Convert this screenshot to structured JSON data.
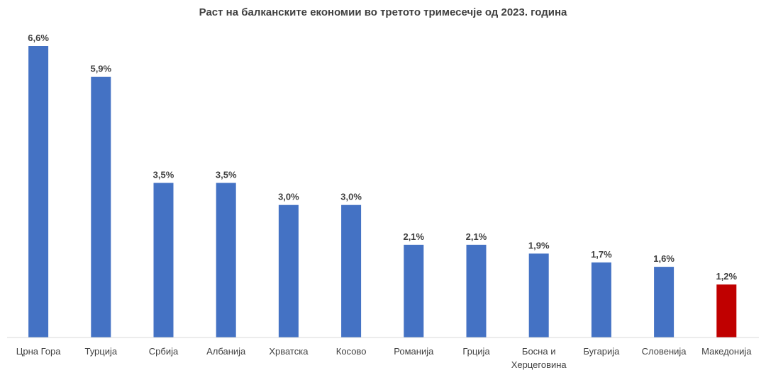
{
  "chart_data": {
    "type": "bar",
    "title": "Раст на балканските економии во третото тримесечје од 2023. година",
    "xlabel": "",
    "ylabel": "",
    "categories": [
      "Црна Гора",
      "Турција",
      "Србија",
      "Албанија",
      "Хрватска",
      "Косово",
      "Романија",
      "Грција",
      "Босна и Херцеговина",
      "Бугарија",
      "Словенија",
      "Македонија"
    ],
    "category_lines": [
      [
        "Црна Гора"
      ],
      [
        "Турција"
      ],
      [
        "Србија"
      ],
      [
        "Албанија"
      ],
      [
        "Хрватска"
      ],
      [
        "Косово"
      ],
      [
        "Романија"
      ],
      [
        "Грција"
      ],
      [
        "Босна и",
        "Херцеговина"
      ],
      [
        "Бугарија"
      ],
      [
        "Словенија"
      ],
      [
        "Македонија"
      ]
    ],
    "values": [
      6.6,
      5.9,
      3.5,
      3.5,
      3.0,
      3.0,
      2.1,
      2.1,
      1.9,
      1.7,
      1.6,
      1.2
    ],
    "value_labels": [
      "6,6%",
      "5,9%",
      "3,5%",
      "3,5%",
      "3,0%",
      "3,0%",
      "2,1%",
      "2,1%",
      "1,9%",
      "1,7%",
      "1,6%",
      "1,2%"
    ],
    "colors": [
      "#4472C4",
      "#4472C4",
      "#4472C4",
      "#4472C4",
      "#4472C4",
      "#4472C4",
      "#4472C4",
      "#4472C4",
      "#4472C4",
      "#4472C4",
      "#4472C4",
      "#C00000"
    ],
    "ylim": [
      0,
      6.6
    ],
    "grid": false,
    "legend": "none"
  }
}
